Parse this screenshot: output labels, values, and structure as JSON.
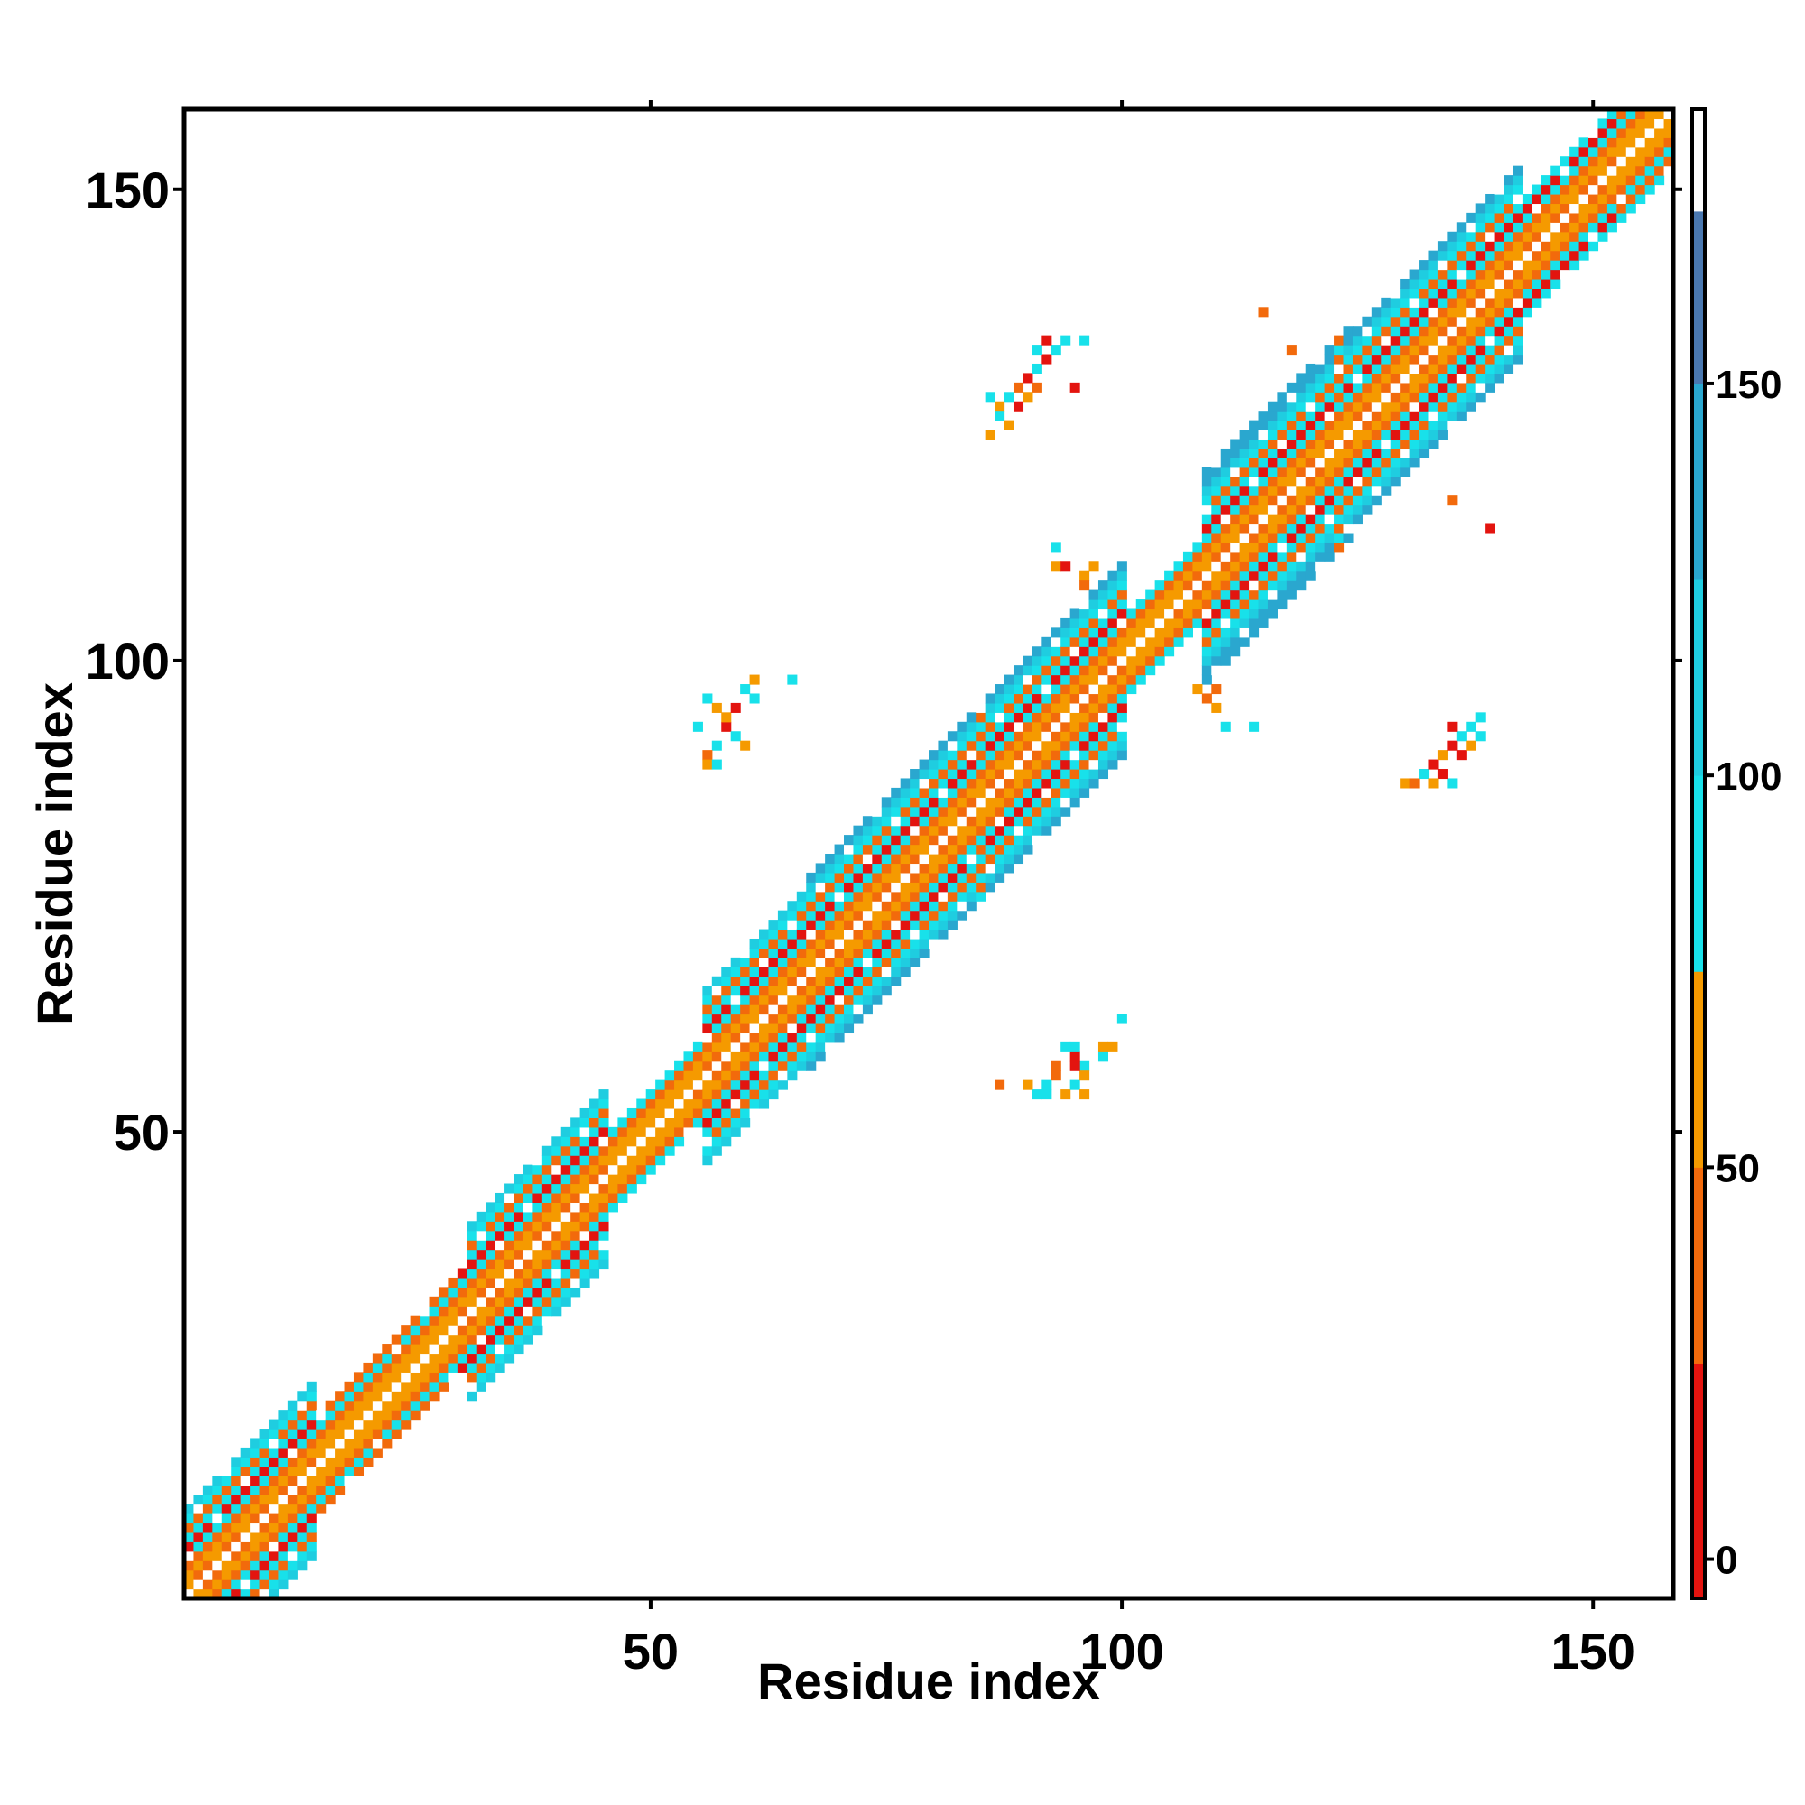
{
  "chart_data": {
    "type": "heatmap",
    "title": "",
    "xlabel": "Residue index",
    "ylabel": "Residue index",
    "xlim": [
      1,
      158
    ],
    "ylim": [
      1,
      158
    ],
    "x_ticks": [
      50,
      100,
      150
    ],
    "y_ticks": [
      50,
      100,
      150
    ],
    "colorbar": {
      "range": [
        -5,
        185
      ],
      "ticks": [
        0,
        50,
        100,
        150
      ],
      "bands": [
        {
          "from": -5,
          "to": 25,
          "color": "#e3140f"
        },
        {
          "from": 25,
          "to": 50,
          "color": "#f26a0c"
        },
        {
          "from": 50,
          "to": 75,
          "color": "#f59a00"
        },
        {
          "from": 75,
          "to": 100,
          "color": "#18e1ea"
        },
        {
          "from": 100,
          "to": 125,
          "color": "#1fcde0"
        },
        {
          "from": 125,
          "to": 150,
          "color": "#2aa7cf"
        },
        {
          "from": 150,
          "to": 172,
          "color": "#4a78b0"
        },
        {
          "from": 172,
          "to": 185,
          "color": "#ffffff"
        }
      ]
    },
    "diagonal_band": {
      "residue_range": [
        1,
        158
      ],
      "half_width_segments": [
        {
          "from": 1,
          "to": 14,
          "max_offset": 9
        },
        {
          "from": 14,
          "to": 30,
          "max_offset": 5
        },
        {
          "from": 30,
          "to": 45,
          "max_offset": 9
        },
        {
          "from": 45,
          "to": 55,
          "max_offset": 4
        },
        {
          "from": 55,
          "to": 66,
          "max_offset": 9
        },
        {
          "from": 66,
          "to": 85,
          "max_offset": 10
        },
        {
          "from": 85,
          "to": 100,
          "max_offset": 10
        },
        {
          "from": 100,
          "to": 108,
          "max_offset": 4
        },
        {
          "from": 108,
          "to": 124,
          "max_offset": 11
        },
        {
          "from": 124,
          "to": 142,
          "max_offset": 10
        },
        {
          "from": 142,
          "to": 158,
          "max_offset": 6
        }
      ],
      "helix_ranges": [
        [
          1,
          14
        ],
        [
          30,
          45
        ],
        [
          55,
          66
        ],
        [
          66,
          84
        ],
        [
          86,
          100
        ],
        [
          106,
          122
        ],
        [
          124,
          140
        ],
        [
          140,
          152
        ]
      ],
      "value_pattern_by_offset": [
        0,
        35,
        60,
        38,
        90,
        20,
        88,
        45,
        95,
        110,
        130
      ]
    },
    "off_diagonal_contacts": [
      {
        "x": 88,
        "y": 128,
        "v": 95
      },
      {
        "x": 89,
        "y": 129,
        "v": 40
      },
      {
        "x": 90,
        "y": 130,
        "v": 5
      },
      {
        "x": 91,
        "y": 131,
        "v": 95
      },
      {
        "x": 92,
        "y": 132,
        "v": 10
      },
      {
        "x": 93,
        "y": 133,
        "v": 90
      },
      {
        "x": 94,
        "y": 134,
        "v": 92
      },
      {
        "x": 87,
        "y": 127,
        "v": 60
      },
      {
        "x": 87,
        "y": 126,
        "v": 95
      },
      {
        "x": 88,
        "y": 125,
        "v": 60
      },
      {
        "x": 89,
        "y": 127,
        "v": 15
      },
      {
        "x": 91,
        "y": 129,
        "v": 30
      },
      {
        "x": 90,
        "y": 128,
        "v": 60
      },
      {
        "x": 91,
        "y": 133,
        "v": 95
      },
      {
        "x": 92,
        "y": 134,
        "v": 20
      },
      {
        "x": 95,
        "y": 129,
        "v": 5
      },
      {
        "x": 96,
        "y": 134,
        "v": 95
      },
      {
        "x": 86,
        "y": 128,
        "v": 88
      },
      {
        "x": 86,
        "y": 124,
        "v": 60
      },
      {
        "x": 56,
        "y": 96,
        "v": 95
      },
      {
        "x": 57,
        "y": 95,
        "v": 60
      },
      {
        "x": 58,
        "y": 93,
        "v": 10
      },
      {
        "x": 59,
        "y": 92,
        "v": 95
      },
      {
        "x": 60,
        "y": 97,
        "v": 90
      },
      {
        "x": 61,
        "y": 98,
        "v": 60
      },
      {
        "x": 57,
        "y": 91,
        "v": 95
      },
      {
        "x": 56,
        "y": 90,
        "v": 35
      },
      {
        "x": 58,
        "y": 94,
        "v": 60
      },
      {
        "x": 59,
        "y": 95,
        "v": 20
      },
      {
        "x": 61,
        "y": 96,
        "v": 95
      },
      {
        "x": 60,
        "y": 91,
        "v": 60
      },
      {
        "x": 65,
        "y": 98,
        "v": 92
      },
      {
        "x": 56,
        "y": 89,
        "v": 60
      },
      {
        "x": 57,
        "y": 89,
        "v": 90
      },
      {
        "x": 55,
        "y": 93,
        "v": 95
      },
      {
        "x": 93,
        "y": 112,
        "v": 95
      },
      {
        "x": 93,
        "y": 110,
        "v": 60
      },
      {
        "x": 94,
        "y": 110,
        "v": 10
      },
      {
        "x": 96,
        "y": 109,
        "v": 60
      },
      {
        "x": 97,
        "y": 110,
        "v": 60
      },
      {
        "x": 96,
        "y": 108,
        "v": 40
      },
      {
        "x": 115,
        "y": 137,
        "v": 40
      },
      {
        "x": 118,
        "y": 133,
        "v": 30
      },
      {
        "x": 135,
        "y": 117,
        "v": 40
      },
      {
        "x": 139,
        "y": 114,
        "v": 20
      },
      {
        "x": 108,
        "y": 97,
        "v": 60
      },
      {
        "x": 109,
        "y": 96,
        "v": 40
      },
      {
        "x": 110,
        "y": 95,
        "v": 60
      },
      {
        "x": 111,
        "y": 93,
        "v": 95
      },
      {
        "x": 114,
        "y": 93,
        "v": 90
      },
      {
        "x": 110,
        "y": 97,
        "v": 35
      },
      {
        "x": 130,
        "y": 87,
        "v": 60
      },
      {
        "x": 131,
        "y": 87,
        "v": 35
      },
      {
        "x": 132,
        "y": 88,
        "v": 95
      },
      {
        "x": 133,
        "y": 89,
        "v": 20
      },
      {
        "x": 134,
        "y": 90,
        "v": 60
      },
      {
        "x": 135,
        "y": 91,
        "v": 5
      },
      {
        "x": 136,
        "y": 92,
        "v": 95
      },
      {
        "x": 137,
        "y": 93,
        "v": 92
      },
      {
        "x": 138,
        "y": 94,
        "v": 95
      },
      {
        "x": 135,
        "y": 87,
        "v": 95
      },
      {
        "x": 134,
        "y": 88,
        "v": 10
      },
      {
        "x": 136,
        "y": 90,
        "v": 15
      },
      {
        "x": 137,
        "y": 91,
        "v": 60
      },
      {
        "x": 138,
        "y": 92,
        "v": 95
      },
      {
        "x": 133,
        "y": 87,
        "v": 60
      },
      {
        "x": 135,
        "y": 93,
        "v": 10
      },
      {
        "x": 90,
        "y": 55,
        "v": 60
      },
      {
        "x": 91,
        "y": 54,
        "v": 95
      },
      {
        "x": 92,
        "y": 55,
        "v": 88
      },
      {
        "x": 93,
        "y": 56,
        "v": 40
      },
      {
        "x": 94,
        "y": 54,
        "v": 60
      },
      {
        "x": 95,
        "y": 55,
        "v": 95
      },
      {
        "x": 96,
        "y": 57,
        "v": 90
      },
      {
        "x": 95,
        "y": 58,
        "v": 5
      },
      {
        "x": 96,
        "y": 56,
        "v": 60
      },
      {
        "x": 98,
        "y": 58,
        "v": 95
      },
      {
        "x": 99,
        "y": 59,
        "v": 60
      },
      {
        "x": 100,
        "y": 62,
        "v": 95
      },
      {
        "x": 93,
        "y": 57,
        "v": 40
      },
      {
        "x": 94,
        "y": 59,
        "v": 92
      },
      {
        "x": 95,
        "y": 59,
        "v": 95
      },
      {
        "x": 92,
        "y": 54,
        "v": 95
      },
      {
        "x": 95,
        "y": 57,
        "v": 10
      },
      {
        "x": 87,
        "y": 55,
        "v": 40
      },
      {
        "x": 96,
        "y": 54,
        "v": 55
      },
      {
        "x": 98,
        "y": 59,
        "v": 60
      }
    ]
  }
}
